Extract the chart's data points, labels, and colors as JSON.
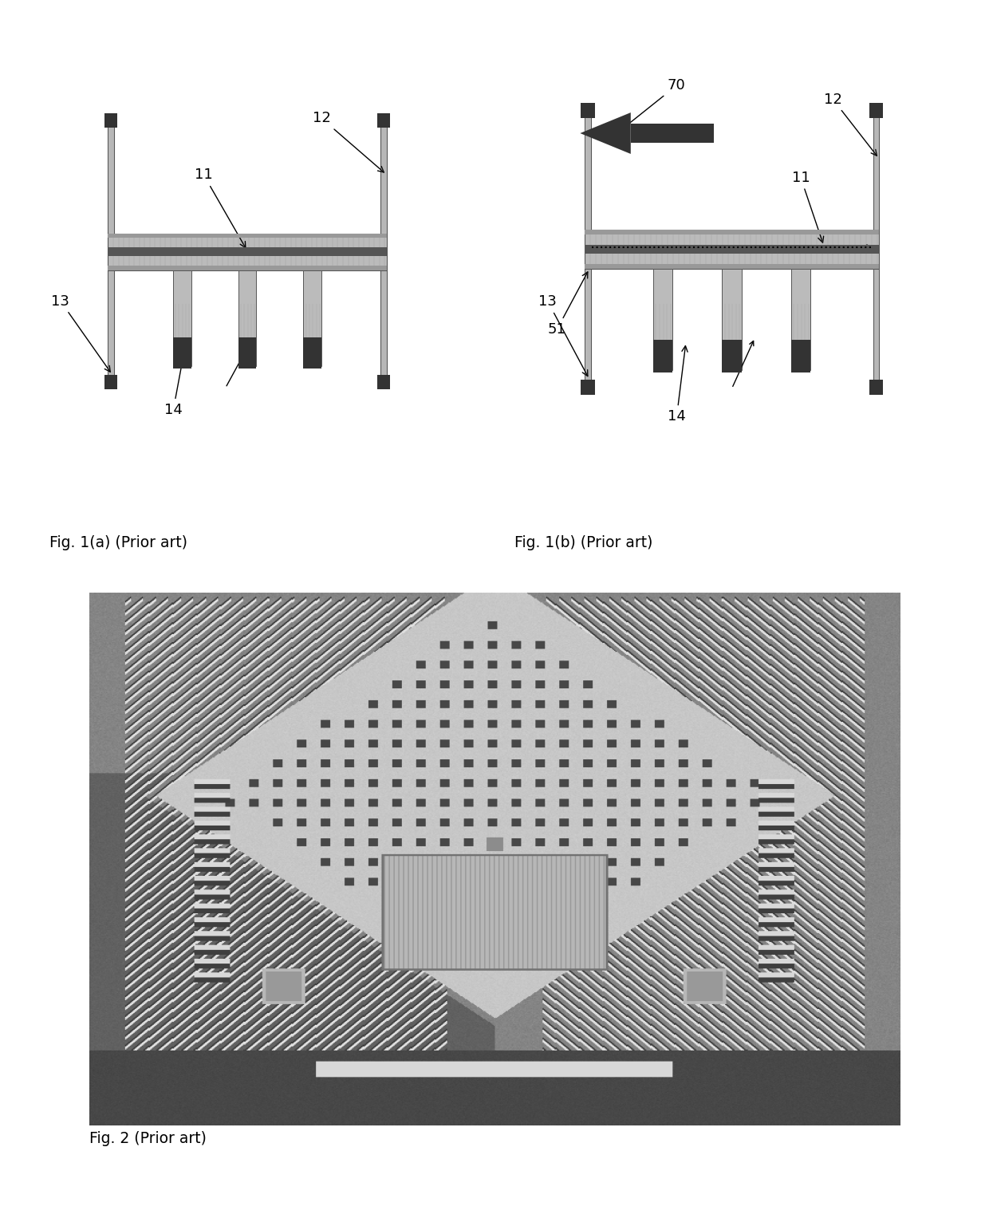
{
  "fig_width": 12.4,
  "fig_height": 15.17,
  "bg_color": "#ffffff",
  "fig1a_label": "Fig. 1(a) (Prior art)",
  "fig1b_label": "Fig. 1(b) (Prior art)",
  "fig2_label": "Fig. 2 (Prior art)"
}
